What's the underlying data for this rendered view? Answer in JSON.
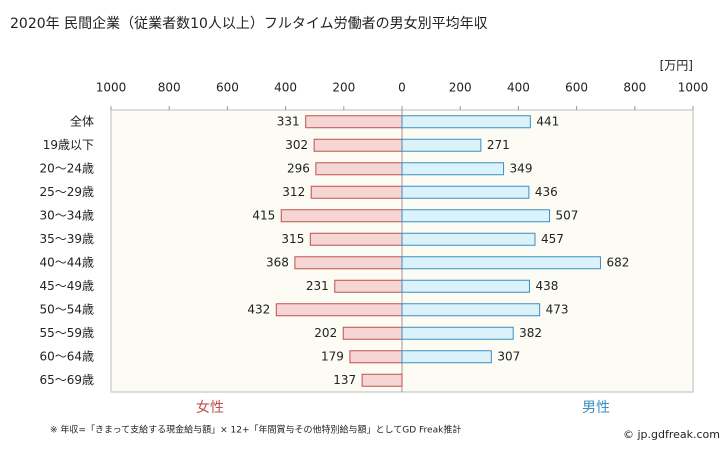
{
  "chart_data": {
    "type": "butterfly-bar",
    "title": "2020年 民間企業（従業者数10人以上）フルタイム労働者の男女別平均年収",
    "unit": "[万円]",
    "categories": [
      "全体",
      "19歳以下",
      "20〜24歳",
      "25〜29歳",
      "30〜34歳",
      "35〜39歳",
      "40〜44歳",
      "45〜49歳",
      "50〜54歳",
      "55〜59歳",
      "60〜64歳",
      "65〜69歳"
    ],
    "series": [
      {
        "name": "女性",
        "color": "#c0504d",
        "fill": "#f6d5d5",
        "side": "left",
        "values": [
          331,
          302,
          296,
          312,
          415,
          315,
          368,
          231,
          432,
          202,
          179,
          137
        ]
      },
      {
        "name": "男性",
        "color": "#3a8fc0",
        "fill": "#dcf2fb",
        "side": "right",
        "values": [
          441,
          271,
          349,
          436,
          507,
          457,
          682,
          438,
          473,
          382,
          307,
          null
        ]
      }
    ],
    "xlim": [
      0,
      1000
    ],
    "xticks": [
      0,
      200,
      400,
      600,
      800,
      1000
    ],
    "footnote": "※ 年収=「きまって支給する現金給与額」× 12+「年間賞与その他特別給与額」としてGD Freak推計",
    "source": "© jp.gdfreak.com"
  }
}
